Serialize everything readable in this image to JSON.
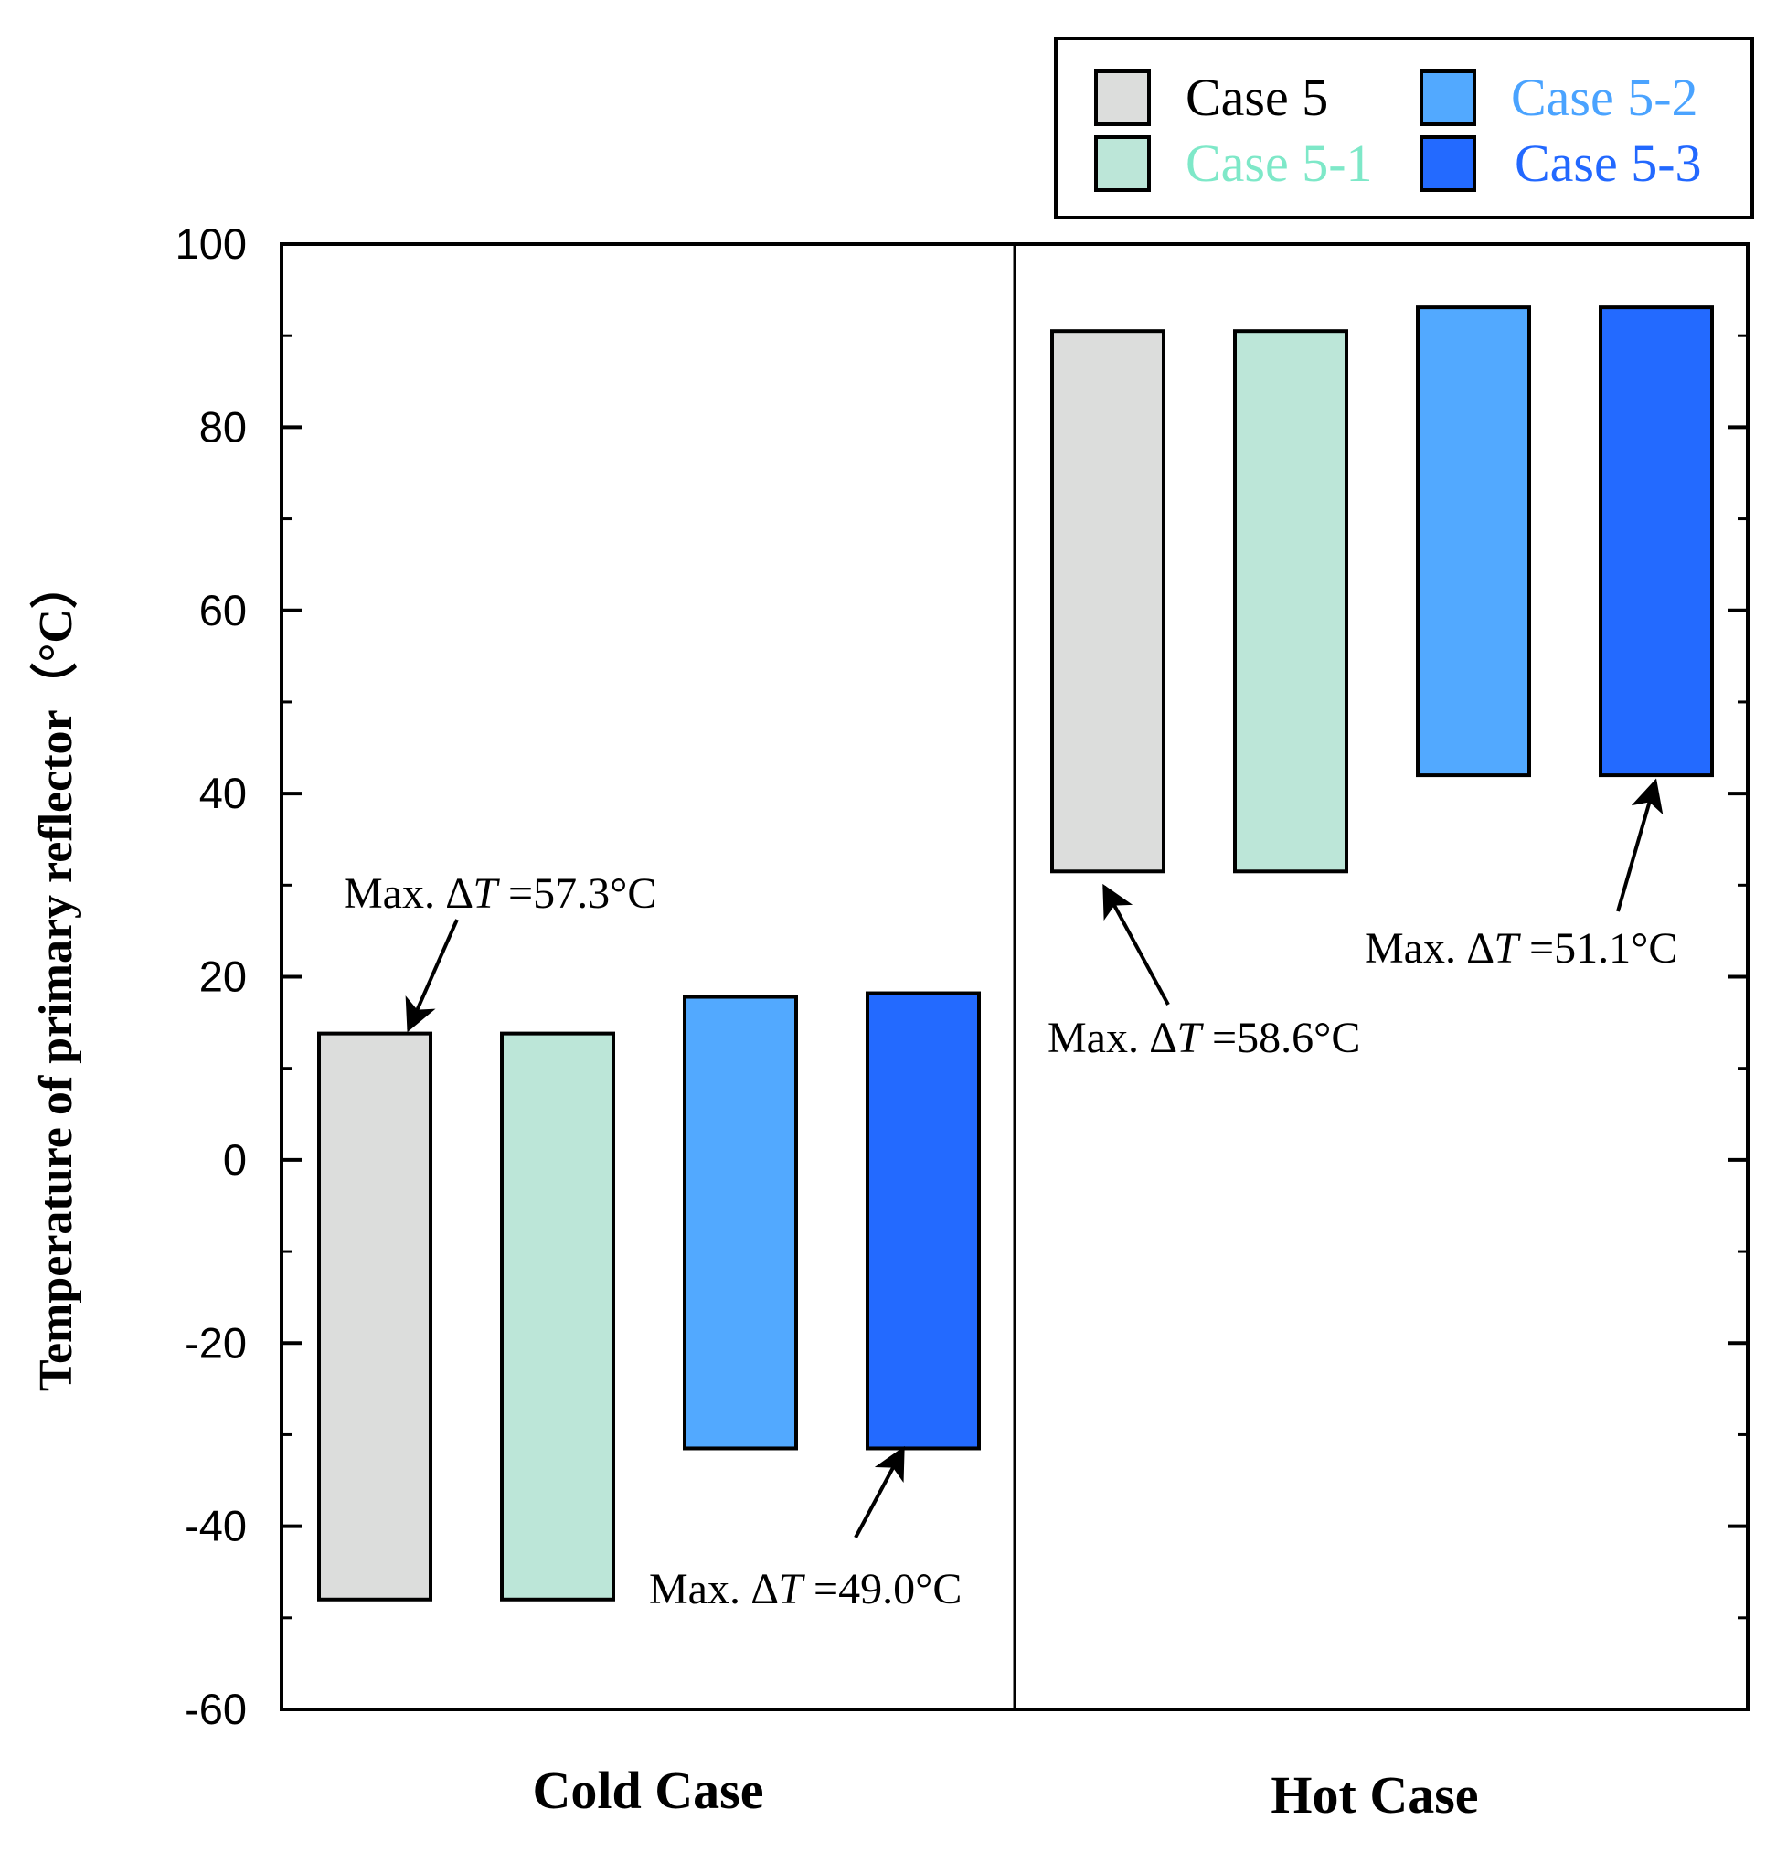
{
  "chart_data": {
    "type": "floating-bar",
    "ylabel": "Temperature of primary reflector（°C）",
    "ylim": [
      -60,
      100
    ],
    "yticks": [
      -60,
      -40,
      -20,
      0,
      20,
      40,
      60,
      80,
      100
    ],
    "groups": [
      "Cold Case",
      "Hot Case"
    ],
    "series": [
      {
        "name": "Case 5",
        "color": "#dcdddc",
        "text_color": "#000000",
        "min": [
          -48.0,
          31.5
        ],
        "max": [
          13.8,
          90.5
        ]
      },
      {
        "name": "Case 5-1",
        "color": "#bce6d8",
        "text_color": "#7ee8c8",
        "min": [
          -48.0,
          31.5
        ],
        "max": [
          13.8,
          90.5
        ]
      },
      {
        "name": "Case 5-2",
        "color": "#52a9ff",
        "text_color": "#4aa3ff",
        "min": [
          -31.5,
          42.0
        ],
        "max": [
          17.8,
          93.1
        ]
      },
      {
        "name": "Case 5-3",
        "color": "#236aff",
        "text_color": "#2268ff",
        "min": [
          -31.5,
          42.0
        ],
        "max": [
          18.2,
          93.1
        ]
      }
    ],
    "annotations": [
      {
        "prefix": "Max. ",
        "delta": "∆T",
        "suffix": " =57.3°C",
        "group": "Cold Case",
        "series": "Case 5"
      },
      {
        "prefix": "Max. ",
        "delta": "∆T",
        "suffix": " =49.0°C",
        "group": "Cold Case",
        "series": "Case 5-3"
      },
      {
        "prefix": "Max. ",
        "delta": "∆T",
        "suffix": " =58.6°C",
        "group": "Hot Case",
        "series": "Case 5"
      },
      {
        "prefix": "Max. ",
        "delta": "∆T",
        "suffix": " =51.1°C",
        "group": "Hot Case",
        "series": "Case 5-3"
      }
    ],
    "legend_position": "top-right"
  }
}
